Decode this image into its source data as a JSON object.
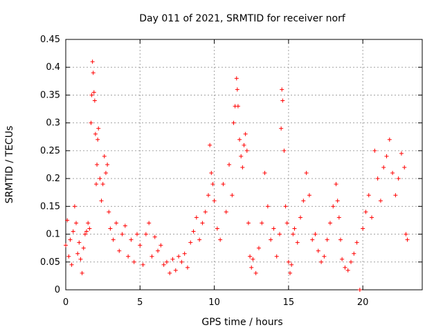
{
  "chart_data": {
    "type": "scatter",
    "title": "Day 011 of 2021, SRMTID for receiver norf",
    "xlabel": "GPS time / hours",
    "ylabel": "SRMTID / TECUs",
    "xlim": [
      0,
      24
    ],
    "ylim": [
      0,
      0.45
    ],
    "xticks": [
      0,
      5,
      10,
      15,
      20
    ],
    "xtick_labels": [
      "0",
      "5",
      "10",
      "15",
      "20"
    ],
    "yticks": [
      0,
      0.05,
      0.1,
      0.15,
      0.2,
      0.25,
      0.3,
      0.35,
      0.4,
      0.45
    ],
    "ytick_labels": [
      "0",
      "0.05",
      "0.1",
      "0.15",
      "0.2",
      "0.25",
      "0.3",
      "0.35",
      "0.4",
      "0.45"
    ],
    "grid": true,
    "marker": "+",
    "color": "#ff0000",
    "series": [
      {
        "name": "SRMTID",
        "points": [
          [
            0.0,
            0.08
          ],
          [
            0.1,
            0.125
          ],
          [
            0.2,
            0.06
          ],
          [
            0.3,
            0.09
          ],
          [
            0.4,
            0.045
          ],
          [
            0.5,
            0.105
          ],
          [
            0.6,
            0.15
          ],
          [
            0.7,
            0.12
          ],
          [
            0.8,
            0.065
          ],
          [
            0.9,
            0.085
          ],
          [
            1.0,
            0.055
          ],
          [
            1.1,
            0.03
          ],
          [
            1.2,
            0.075
          ],
          [
            1.3,
            0.1
          ],
          [
            1.4,
            0.105
          ],
          [
            1.5,
            0.12
          ],
          [
            1.6,
            0.11
          ],
          [
            1.7,
            0.3
          ],
          [
            1.75,
            0.35
          ],
          [
            1.8,
            0.41
          ],
          [
            1.85,
            0.39
          ],
          [
            1.9,
            0.355
          ],
          [
            1.95,
            0.34
          ],
          [
            2.0,
            0.28
          ],
          [
            2.05,
            0.19
          ],
          [
            2.1,
            0.225
          ],
          [
            2.15,
            0.27
          ],
          [
            2.2,
            0.29
          ],
          [
            2.3,
            0.2
          ],
          [
            2.4,
            0.16
          ],
          [
            2.5,
            0.19
          ],
          [
            2.6,
            0.24
          ],
          [
            2.7,
            0.21
          ],
          [
            2.8,
            0.225
          ],
          [
            2.9,
            0.14
          ],
          [
            3.0,
            0.11
          ],
          [
            3.2,
            0.09
          ],
          [
            3.4,
            0.12
          ],
          [
            3.6,
            0.07
          ],
          [
            3.8,
            0.1
          ],
          [
            4.0,
            0.115
          ],
          [
            4.2,
            0.06
          ],
          [
            4.4,
            0.09
          ],
          [
            4.6,
            0.05
          ],
          [
            4.8,
            0.1
          ],
          [
            5.0,
            0.08
          ],
          [
            5.2,
            0.045
          ],
          [
            5.4,
            0.1
          ],
          [
            5.6,
            0.12
          ],
          [
            5.8,
            0.06
          ],
          [
            6.0,
            0.095
          ],
          [
            6.2,
            0.07
          ],
          [
            6.4,
            0.08
          ],
          [
            6.6,
            0.045
          ],
          [
            6.8,
            0.05
          ],
          [
            7.0,
            0.03
          ],
          [
            7.2,
            0.055
          ],
          [
            7.4,
            0.035
          ],
          [
            7.6,
            0.06
          ],
          [
            7.8,
            0.05
          ],
          [
            8.0,
            0.065
          ],
          [
            8.2,
            0.04
          ],
          [
            8.4,
            0.085
          ],
          [
            8.6,
            0.105
          ],
          [
            8.8,
            0.13
          ],
          [
            9.0,
            0.09
          ],
          [
            9.2,
            0.12
          ],
          [
            9.4,
            0.14
          ],
          [
            9.6,
            0.17
          ],
          [
            9.7,
            0.26
          ],
          [
            9.8,
            0.21
          ],
          [
            9.9,
            0.19
          ],
          [
            10.0,
            0.16
          ],
          [
            10.2,
            0.11
          ],
          [
            10.4,
            0.09
          ],
          [
            10.6,
            0.19
          ],
          [
            10.8,
            0.14
          ],
          [
            11.0,
            0.225
          ],
          [
            11.2,
            0.17
          ],
          [
            11.3,
            0.3
          ],
          [
            11.4,
            0.33
          ],
          [
            11.5,
            0.38
          ],
          [
            11.55,
            0.36
          ],
          [
            11.6,
            0.33
          ],
          [
            11.7,
            0.27
          ],
          [
            11.8,
            0.24
          ],
          [
            11.9,
            0.22
          ],
          [
            12.0,
            0.26
          ],
          [
            12.1,
            0.28
          ],
          [
            12.2,
            0.25
          ],
          [
            12.3,
            0.12
          ],
          [
            12.4,
            0.06
          ],
          [
            12.5,
            0.04
          ],
          [
            12.6,
            0.055
          ],
          [
            12.8,
            0.03
          ],
          [
            13.0,
            0.075
          ],
          [
            13.2,
            0.12
          ],
          [
            13.4,
            0.21
          ],
          [
            13.6,
            0.15
          ],
          [
            13.8,
            0.09
          ],
          [
            14.0,
            0.11
          ],
          [
            14.2,
            0.06
          ],
          [
            14.4,
            0.1
          ],
          [
            14.5,
            0.29
          ],
          [
            14.55,
            0.36
          ],
          [
            14.6,
            0.34
          ],
          [
            14.7,
            0.25
          ],
          [
            14.8,
            0.15
          ],
          [
            14.9,
            0.12
          ],
          [
            15.0,
            0.05
          ],
          [
            15.1,
            0.03
          ],
          [
            15.2,
            0.045
          ],
          [
            15.3,
            0.1
          ],
          [
            15.4,
            0.11
          ],
          [
            15.6,
            0.085
          ],
          [
            15.8,
            0.13
          ],
          [
            16.0,
            0.16
          ],
          [
            16.2,
            0.21
          ],
          [
            16.4,
            0.17
          ],
          [
            16.6,
            0.09
          ],
          [
            16.8,
            0.1
          ],
          [
            17.0,
            0.07
          ],
          [
            17.2,
            0.05
          ],
          [
            17.4,
            0.06
          ],
          [
            17.6,
            0.09
          ],
          [
            17.8,
            0.12
          ],
          [
            18.0,
            0.15
          ],
          [
            18.2,
            0.19
          ],
          [
            18.3,
            0.16
          ],
          [
            18.4,
            0.13
          ],
          [
            18.5,
            0.09
          ],
          [
            18.6,
            0.055
          ],
          [
            18.8,
            0.04
          ],
          [
            19.0,
            0.035
          ],
          [
            19.2,
            0.05
          ],
          [
            19.4,
            0.065
          ],
          [
            19.6,
            0.085
          ],
          [
            19.8,
            0.0
          ],
          [
            20.0,
            0.11
          ],
          [
            20.2,
            0.14
          ],
          [
            20.4,
            0.17
          ],
          [
            20.6,
            0.13
          ],
          [
            20.8,
            0.25
          ],
          [
            21.0,
            0.2
          ],
          [
            21.2,
            0.16
          ],
          [
            21.4,
            0.22
          ],
          [
            21.6,
            0.24
          ],
          [
            21.8,
            0.27
          ],
          [
            22.0,
            0.21
          ],
          [
            22.2,
            0.17
          ],
          [
            22.4,
            0.2
          ],
          [
            22.6,
            0.245
          ],
          [
            22.8,
            0.22
          ],
          [
            22.9,
            0.1
          ],
          [
            23.0,
            0.09
          ]
        ]
      }
    ]
  }
}
